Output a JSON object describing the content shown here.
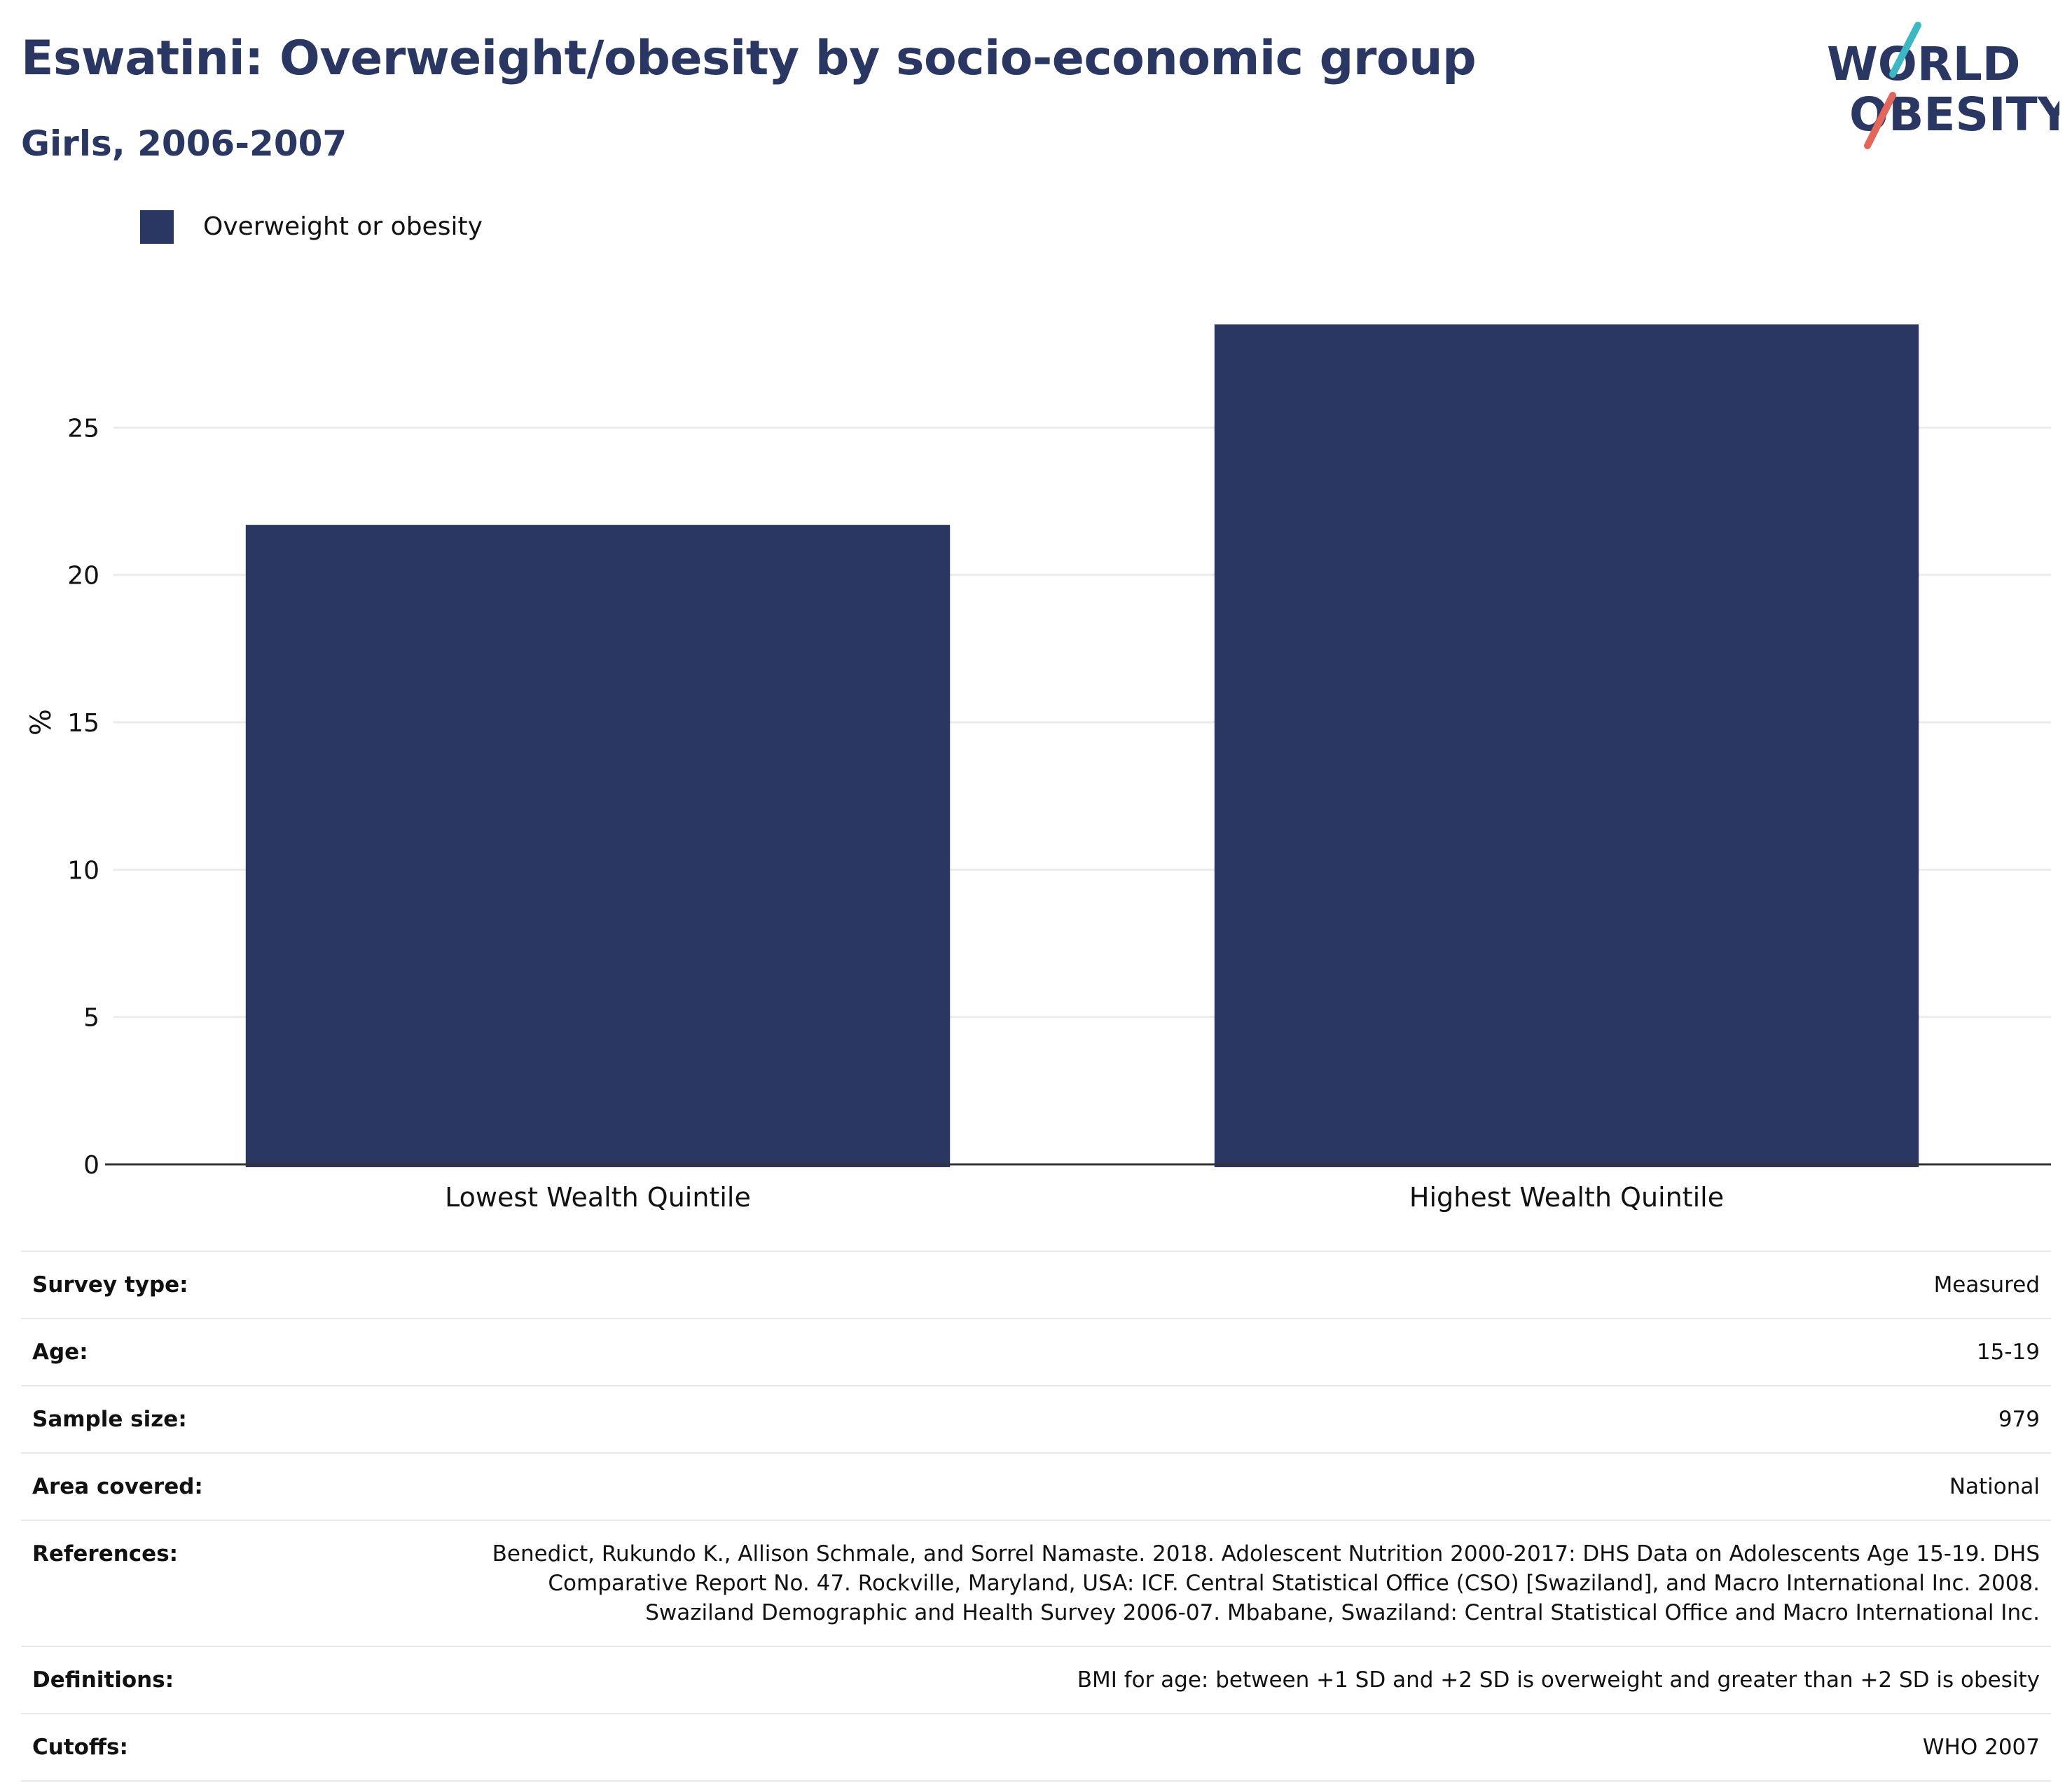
{
  "header": {
    "title": "Eswatini: Overweight/obesity by socio-economic group",
    "subtitle": "Girls, 2006-2007"
  },
  "logo": {
    "line1": "WORLD",
    "line2": "OBESITY",
    "colors": {
      "text": "#2b3763",
      "slash_top": "#3bb8c3",
      "slash_bottom": "#e2675a"
    }
  },
  "colors": {
    "bar": "#2b3763",
    "grid": "#ebebeb",
    "axis": "#333333"
  },
  "chart_data": {
    "type": "bar",
    "categories": [
      "Lowest Wealth Quintile",
      "Highest Wealth Quintile"
    ],
    "series": [
      {
        "name": "Overweight or obesity",
        "values": [
          21.7,
          28.5
        ]
      }
    ],
    "title": "Eswatini: Overweight/obesity by socio-economic group",
    "subtitle": "Girls, 2006-2007",
    "xlabel": "",
    "ylabel": "%",
    "ylim": [
      0,
      30
    ],
    "yticks": [
      0,
      5,
      10,
      15,
      20,
      25
    ],
    "grid": true,
    "legend": "top-left"
  },
  "meta": [
    {
      "label": "Survey type:",
      "value": "Measured"
    },
    {
      "label": "Age:",
      "value": "15-19"
    },
    {
      "label": "Sample size:",
      "value": "979"
    },
    {
      "label": "Area covered:",
      "value": "National"
    },
    {
      "label": "References:",
      "value": "Benedict, Rukundo K., Allison Schmale, and Sorrel Namaste. 2018. Adolescent Nutrition 2000-2017: DHS Data on Adolescents Age 15-19. DHS Comparative Report No. 47. Rockville, Maryland, USA: ICF. Central Statistical Office (CSO) [Swaziland], and Macro International Inc. 2008. Swaziland Demographic and Health Survey 2006-07. Mbabane, Swaziland: Central Statistical Office and Macro International Inc."
    },
    {
      "label": "Definitions:",
      "value": "BMI for age: between +1 SD and +2 SD is overweight and greater than +2 SD is obesity"
    },
    {
      "label": "Cutoffs:",
      "value": "WHO 2007"
    }
  ]
}
